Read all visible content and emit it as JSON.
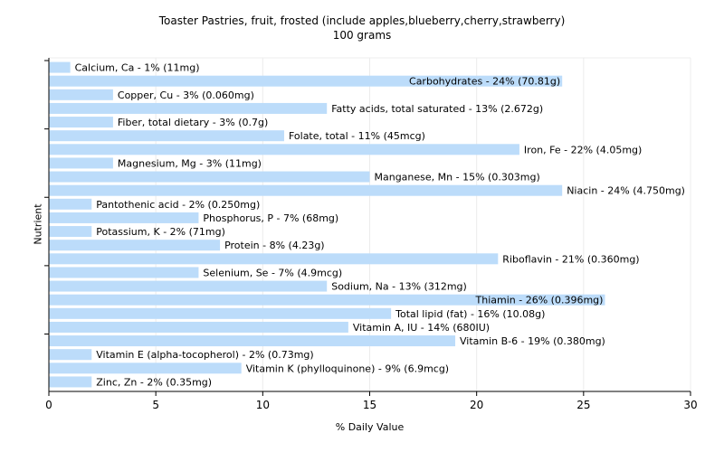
{
  "chart_data": {
    "type": "bar",
    "orientation": "horizontal",
    "title": "Toaster Pastries, fruit, frosted (include apples,blueberry,cherry,strawberry)",
    "subtitle": "100 grams",
    "xlabel": "% Daily Value",
    "ylabel": "Nutrient",
    "xlim": [
      0,
      30
    ],
    "xticks": [
      0,
      5,
      10,
      15,
      20,
      25,
      30
    ],
    "grid": true,
    "colors": {
      "bar": "#bcdcfa"
    },
    "categories": [
      "Calcium, Ca",
      "Carbohydrates",
      "Copper, Cu",
      "Fatty acids, total saturated",
      "Fiber, total dietary",
      "Folate, total",
      "Iron, Fe",
      "Magnesium, Mg",
      "Manganese, Mn",
      "Niacin",
      "Pantothenic acid",
      "Phosphorus, P",
      "Potassium, K",
      "Protein",
      "Riboflavin",
      "Selenium, Se",
      "Sodium, Na",
      "Thiamin",
      "Total lipid (fat)",
      "Vitamin A, IU",
      "Vitamin B-6",
      "Vitamin E (alpha-tocopherol)",
      "Vitamin K (phylloquinone)",
      "Zinc, Zn"
    ],
    "values": [
      1,
      24,
      3,
      13,
      3,
      11,
      22,
      3,
      15,
      24,
      2,
      7,
      2,
      8,
      21,
      7,
      13,
      26,
      16,
      14,
      19,
      2,
      9,
      2
    ],
    "labels": [
      "Calcium, Ca - 1% (11mg)",
      "Carbohydrates - 24% (70.81g)",
      "Copper, Cu - 3% (0.060mg)",
      "Fatty acids, total saturated - 13% (2.672g)",
      "Fiber, total dietary - 3% (0.7g)",
      "Folate, total - 11% (45mcg)",
      "Iron, Fe - 22% (4.05mg)",
      "Magnesium, Mg - 3% (11mg)",
      "Manganese, Mn - 15% (0.303mg)",
      "Niacin - 24% (4.750mg)",
      "Pantothenic acid - 2% (0.250mg)",
      "Phosphorus, P - 7% (68mg)",
      "Potassium, K - 2% (71mg)",
      "Protein - 8% (4.23g)",
      "Riboflavin - 21% (0.360mg)",
      "Selenium, Se - 7% (4.9mcg)",
      "Sodium, Na - 13% (312mg)",
      "Thiamin - 26% (0.396mg)",
      "Total lipid (fat) - 16% (10.08g)",
      "Vitamin A, IU - 14% (680IU)",
      "Vitamin B-6 - 19% (0.380mg)",
      "Vitamin E (alpha-tocopherol) - 2% (0.73mg)",
      "Vitamin K (phylloquinone) - 9% (6.9mcg)",
      "Zinc, Zn - 2% (0.35mg)"
    ]
  }
}
